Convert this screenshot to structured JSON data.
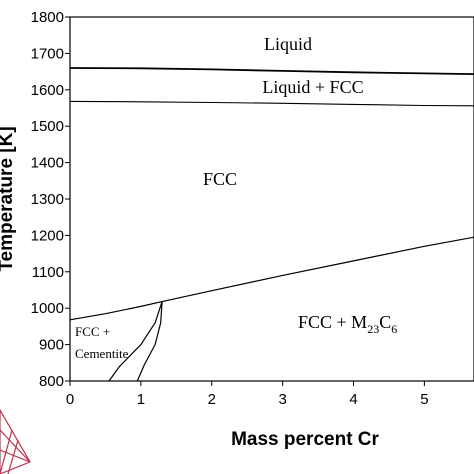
{
  "chart_data": {
    "type": "line",
    "title": "",
    "xlabel": "Mass percent Cr",
    "ylabel": "Temperature [K]",
    "xlim": [
      0,
      5.7
    ],
    "ylim": [
      800,
      1800
    ],
    "x_ticks": [
      0,
      1,
      2,
      3,
      4,
      5
    ],
    "y_ticks": [
      800,
      900,
      1000,
      1100,
      1200,
      1300,
      1400,
      1500,
      1600,
      1700,
      1800
    ],
    "grid": false,
    "series": [
      {
        "points": [
          [
            0,
            1660
          ],
          [
            1,
            1659
          ],
          [
            2,
            1656
          ],
          [
            3,
            1652
          ],
          [
            4,
            1648
          ],
          [
            5,
            1645
          ],
          [
            5.7,
            1643
          ]
        ]
      },
      {
        "points": [
          [
            0,
            1568
          ],
          [
            1,
            1567
          ],
          [
            2,
            1565
          ],
          [
            3,
            1563
          ],
          [
            4,
            1560
          ],
          [
            5,
            1557
          ],
          [
            5.7,
            1556
          ]
        ]
      },
      {
        "points": [
          [
            0,
            968
          ],
          [
            0.5,
            985
          ],
          [
            1,
            1005
          ],
          [
            1.3,
            1018
          ],
          [
            2,
            1048
          ],
          [
            3,
            1090
          ],
          [
            4,
            1130
          ],
          [
            5,
            1170
          ],
          [
            5.7,
            1195
          ]
        ]
      },
      {
        "points": [
          [
            1.3,
            1018
          ],
          [
            1.2,
            960
          ],
          [
            1.0,
            900
          ],
          [
            0.7,
            840
          ],
          [
            0.55,
            800
          ]
        ]
      },
      {
        "points": [
          [
            1.3,
            1018
          ],
          [
            1.28,
            960
          ],
          [
            1.2,
            900
          ],
          [
            1.05,
            845
          ],
          [
            0.95,
            800
          ]
        ]
      }
    ],
    "annotations": {
      "liquid": "Liquid",
      "liquid_fcc": "Liquid + FCC",
      "fcc": "FCC",
      "fcc_cementite_1": "FCC +",
      "fcc_cementite_2": "Cementite",
      "fcc_m23c6_main": "FCC + M",
      "fcc_m23c6_sub1": "23",
      "fcc_m23c6_c": "C",
      "fcc_m23c6_sub2": "6"
    }
  }
}
